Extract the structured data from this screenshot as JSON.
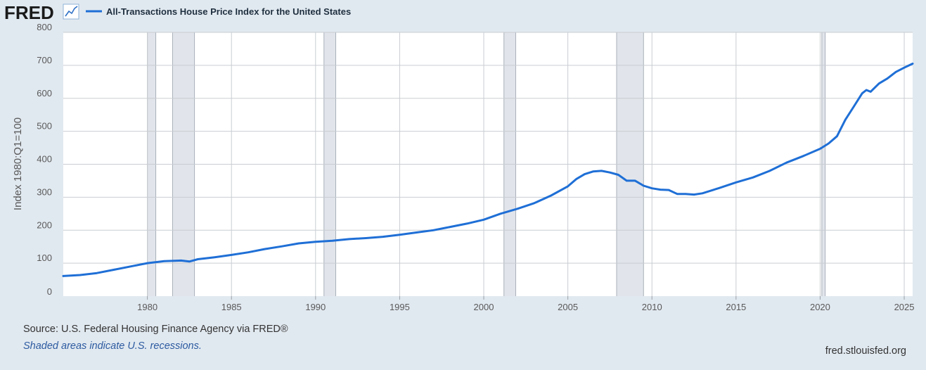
{
  "header": {
    "logo_text": "FRED",
    "logo_icon": "chart-line-icon",
    "series_title": "All-Transactions House Price Index for the United States"
  },
  "footer": {
    "source": "Source: U.S. Federal Housing Finance Agency via FRED®",
    "recession_note": "Shaded areas indicate U.S. recessions.",
    "site": "fred.stlouisfed.org"
  },
  "colors": {
    "background": "#e1e9f0",
    "plot_background": "#ffffff",
    "line": "#1f6fd6",
    "recession": "#e1e5eb",
    "grid": "#c9cdd2"
  },
  "chart_data": {
    "type": "line",
    "title": "",
    "xlabel": "",
    "ylabel": "Index 1980:Q1=100",
    "xlim": [
      1975.0,
      2025.5
    ],
    "ylim": [
      0,
      800
    ],
    "grid": true,
    "x_ticks": [
      1980,
      1985,
      1990,
      1995,
      2000,
      2005,
      2010,
      2015,
      2020,
      2025
    ],
    "y_ticks": [
      0,
      100,
      200,
      300,
      400,
      500,
      600,
      700,
      800
    ],
    "legend": "top-left",
    "recessions": [
      [
        1980.0,
        1980.5
      ],
      [
        1981.5,
        1982.8
      ],
      [
        1990.5,
        1991.2
      ],
      [
        2001.2,
        2001.9
      ],
      [
        2007.9,
        2009.5
      ],
      [
        2020.1,
        2020.3
      ]
    ],
    "series": [
      {
        "name": "All-Transactions House Price Index for the United States",
        "x": [
          1975.0,
          1976.0,
          1977.0,
          1978.0,
          1979.0,
          1980.0,
          1981.0,
          1982.0,
          1982.5,
          1983.0,
          1984.0,
          1985.0,
          1986.0,
          1987.0,
          1988.0,
          1989.0,
          1990.0,
          1991.0,
          1992.0,
          1993.0,
          1994.0,
          1995.0,
          1996.0,
          1997.0,
          1998.0,
          1999.0,
          2000.0,
          2001.0,
          2002.0,
          2003.0,
          2004.0,
          2005.0,
          2005.5,
          2006.0,
          2006.5,
          2007.0,
          2007.5,
          2008.0,
          2008.5,
          2009.0,
          2009.5,
          2010.0,
          2010.5,
          2011.0,
          2011.5,
          2012.0,
          2012.5,
          2013.0,
          2014.0,
          2015.0,
          2016.0,
          2017.0,
          2018.0,
          2019.0,
          2020.0,
          2020.5,
          2021.0,
          2021.5,
          2022.0,
          2022.5,
          2022.75,
          2023.0,
          2023.5,
          2024.0,
          2024.5,
          2025.0,
          2025.5
        ],
        "values": [
          61,
          64,
          70,
          80,
          90,
          100,
          106,
          108,
          105,
          112,
          118,
          125,
          133,
          143,
          151,
          160,
          165,
          168,
          173,
          176,
          180,
          186,
          193,
          200,
          210,
          220,
          232,
          250,
          265,
          282,
          305,
          333,
          355,
          370,
          378,
          380,
          375,
          368,
          350,
          350,
          335,
          327,
          323,
          322,
          310,
          310,
          308,
          312,
          328,
          345,
          360,
          380,
          405,
          425,
          447,
          463,
          485,
          535,
          575,
          615,
          625,
          620,
          645,
          660,
          680,
          693,
          705
        ]
      }
    ]
  }
}
